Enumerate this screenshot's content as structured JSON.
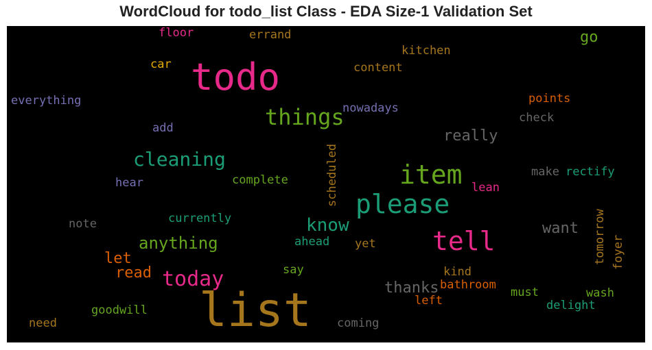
{
  "chart_data": {
    "type": "wordcloud",
    "title": "WordCloud for todo_list Class - EDA Size-1 Validation Set",
    "background": "#000000",
    "colormap": "Dark2",
    "words": [
      {
        "text": "list",
        "color": "#a6761d"
      },
      {
        "text": "todo",
        "color": "#e7298a"
      },
      {
        "text": "please",
        "color": "#1b9e77"
      },
      {
        "text": "tell",
        "color": "#e7298a"
      },
      {
        "text": "item",
        "color": "#66a61e"
      },
      {
        "text": "things",
        "color": "#66a61e"
      },
      {
        "text": "cleaning",
        "color": "#1b9e77"
      },
      {
        "text": "today",
        "color": "#e7298a"
      },
      {
        "text": "know",
        "color": "#1b9e77"
      },
      {
        "text": "anything",
        "color": "#66a61e"
      },
      {
        "text": "thanks",
        "color": "#666666"
      },
      {
        "text": "really",
        "color": "#666666"
      },
      {
        "text": "want",
        "color": "#666666"
      },
      {
        "text": "let",
        "color": "#d95f02"
      },
      {
        "text": "read",
        "color": "#d95f02"
      },
      {
        "text": "go",
        "color": "#66a61e"
      },
      {
        "text": "scheduled",
        "color": "#a6761d"
      },
      {
        "text": "tomorrow",
        "color": "#a6761d"
      },
      {
        "text": "bathroom",
        "color": "#d95f02"
      },
      {
        "text": "complete",
        "color": "#66a61e"
      },
      {
        "text": "currently",
        "color": "#1b9e77"
      },
      {
        "text": "everything",
        "color": "#7570b3"
      },
      {
        "text": "nowadays",
        "color": "#7570b3"
      },
      {
        "text": "content",
        "color": "#a6761d"
      },
      {
        "text": "kitchen",
        "color": "#a6761d"
      },
      {
        "text": "errand",
        "color": "#a6761d"
      },
      {
        "text": "floor",
        "color": "#e7298a"
      },
      {
        "text": "car",
        "color": "#e6ab02"
      },
      {
        "text": "points",
        "color": "#d95f02"
      },
      {
        "text": "check",
        "color": "#666666"
      },
      {
        "text": "add",
        "color": "#7570b3"
      },
      {
        "text": "hear",
        "color": "#7570b3"
      },
      {
        "text": "note",
        "color": "#666666"
      },
      {
        "text": "ahead",
        "color": "#1b9e77"
      },
      {
        "text": "yet",
        "color": "#a6761d"
      },
      {
        "text": "say",
        "color": "#66a61e"
      },
      {
        "text": "kind",
        "color": "#a6761d"
      },
      {
        "text": "left",
        "color": "#d95f02"
      },
      {
        "text": "must",
        "color": "#66a61e"
      },
      {
        "text": "wash",
        "color": "#66a61e"
      },
      {
        "text": "delight",
        "color": "#1b9e77"
      },
      {
        "text": "foyer",
        "color": "#a6761d"
      },
      {
        "text": "make",
        "color": "#666666"
      },
      {
        "text": "rectify",
        "color": "#1b9e77"
      },
      {
        "text": "lean",
        "color": "#e7298a"
      },
      {
        "text": "goodwill",
        "color": "#66a61e"
      },
      {
        "text": "need",
        "color": "#a6761d"
      },
      {
        "text": "coming",
        "color": "#666666"
      }
    ]
  }
}
